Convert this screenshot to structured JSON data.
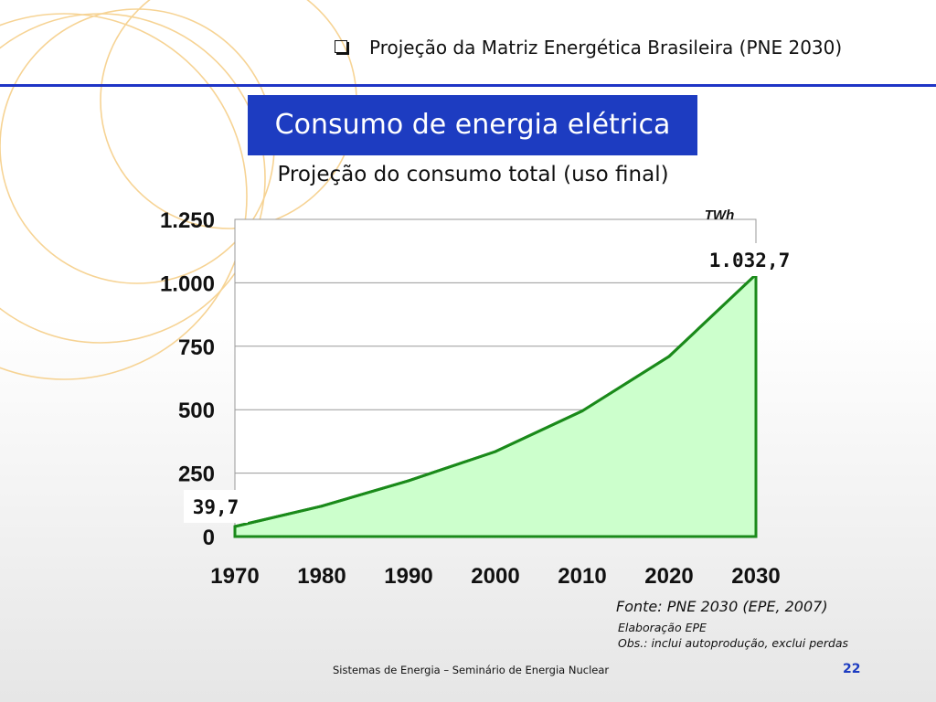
{
  "header": {
    "title": "Projeção da Matriz Energética Brasileira (PNE 2030)"
  },
  "slide": {
    "title": "Consumo de energia elétrica",
    "subtitle": "Projeção do consumo total (uso final)",
    "source": "Fonte: PNE 2030 (EPE, 2007)",
    "note_1": "Elaboração EPE",
    "note_2": "Obs.: inclui autoprodução, exclui perdas"
  },
  "footer": {
    "text": "Sistemas de Energia – Seminário de Energia Nuclear",
    "page": "22"
  },
  "colors": {
    "accent": "#1d3cc1",
    "line": "#1a8a1a",
    "fill": "#ccffcc",
    "deco": "#f5c97a"
  },
  "chart_data": {
    "type": "area",
    "title": "Projeção do consumo total (uso final)",
    "unit": "TWh",
    "x": [
      1970,
      1980,
      1990,
      2000,
      2010,
      2020,
      2030
    ],
    "x_tick_labels": [
      "1970",
      "1980",
      "1990",
      "2000",
      "2010",
      "2020",
      "2030"
    ],
    "series": [
      {
        "values": [
          39.7,
          120,
          220,
          335,
          495,
          710,
          1032.7
        ]
      }
    ],
    "y_ticks": [
      0,
      250,
      500,
      750,
      1000,
      1250
    ],
    "y_tick_labels": [
      "0",
      "250",
      "500",
      "750",
      "1.000",
      "1.250"
    ],
    "ylim": [
      0,
      1250
    ],
    "xlim": [
      1970,
      2030
    ],
    "grid": true,
    "annotations": [
      {
        "text": "39,7",
        "x": 1970,
        "y": 39.7
      },
      {
        "text": "1.032,7",
        "x": 2030,
        "y": 1032.7
      }
    ]
  }
}
